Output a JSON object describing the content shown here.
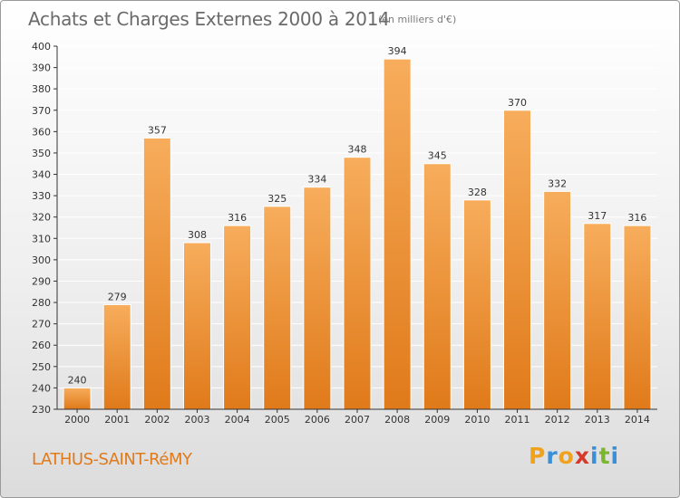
{
  "header": {
    "title": "Achats et Charges Externes 2000 à 2014",
    "unit": "(en milliers d'€)"
  },
  "footer": {
    "commune": "LATHUS-SAINT-RéMY",
    "logo_letters": [
      "P",
      "r",
      "o",
      "x",
      "i",
      "t",
      "i"
    ],
    "logo_colors": [
      "#f0a21d",
      "#3b8fd6",
      "#f0a21d",
      "#d6382a",
      "#3b8fd6",
      "#7ab72e",
      "#3b8fd6"
    ]
  },
  "colors": {
    "bar_light": "#f7ad5c",
    "bar_dark": "#e07a1a",
    "bar_stroke": "#ffffff",
    "grid": "#ffffff",
    "axis": "#333333"
  },
  "chart_data": {
    "type": "bar",
    "title": "Achats et Charges Externes 2000 à 2014",
    "unit": "(en milliers d'€)",
    "categories": [
      "2000",
      "2001",
      "2002",
      "2003",
      "2004",
      "2005",
      "2006",
      "2007",
      "2008",
      "2009",
      "2010",
      "2011",
      "2012",
      "2013",
      "2014"
    ],
    "values": [
      240,
      279,
      357,
      308,
      316,
      325,
      334,
      348,
      394,
      345,
      328,
      370,
      332,
      317,
      316
    ],
    "ylim": [
      230,
      400
    ],
    "yticks": [
      230,
      240,
      250,
      260,
      270,
      280,
      290,
      300,
      310,
      320,
      330,
      340,
      350,
      360,
      370,
      380,
      390,
      400
    ],
    "grid": true,
    "data_labels": true,
    "legend": "none"
  }
}
